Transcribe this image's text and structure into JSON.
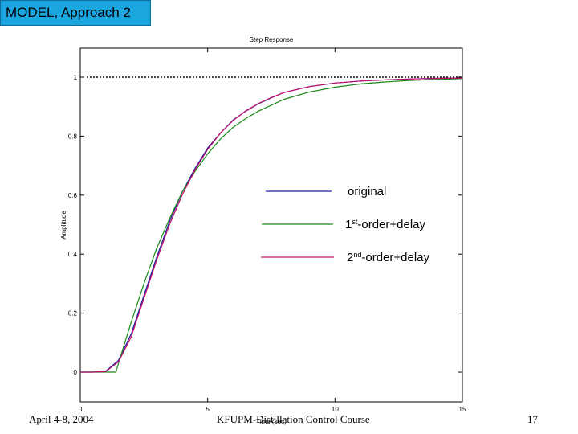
{
  "slide": {
    "title": "MODEL, Approach 2",
    "footer_date": "April 4-8, 2004",
    "footer_course": "KFUPM-Distillation Control Course",
    "page_number": "17"
  },
  "chart_data": {
    "type": "line",
    "title": "Step Response",
    "xlabel": "Time (sec)",
    "ylabel": "Amplitude",
    "xlim": [
      0,
      15
    ],
    "ylim": [
      0,
      1
    ],
    "xticks": [
      0,
      5,
      10,
      15
    ],
    "xtick_labels": [
      "0",
      "5",
      "10",
      "15"
    ],
    "yticks": [
      0,
      0.2,
      0.4,
      0.6,
      0.8,
      1.0
    ],
    "ytick_labels": [
      "0",
      "0.2",
      "0.4",
      "0.6",
      "0.8",
      "1"
    ],
    "grid": false,
    "reference_line": {
      "y": 1.0,
      "style": "dotted",
      "color": "#000000"
    },
    "series": [
      {
        "name": "original",
        "color": "#1a1aa0",
        "x": [
          0,
          0.5,
          1.0,
          1.5,
          2.0,
          2.5,
          3.0,
          3.5,
          4.0,
          4.5,
          5.0,
          5.5,
          6.0,
          6.5,
          7.0,
          7.5,
          8.0,
          9.0,
          10.0,
          11.0,
          12.0,
          13.0,
          14.0,
          15.0
        ],
        "y": [
          0,
          0,
          0.003,
          0.04,
          0.13,
          0.26,
          0.39,
          0.51,
          0.61,
          0.69,
          0.76,
          0.81,
          0.855,
          0.885,
          0.91,
          0.93,
          0.948,
          0.968,
          0.98,
          0.987,
          0.991,
          0.994,
          0.996,
          0.997
        ]
      },
      {
        "name": "1st-order+delay",
        "color": "#1a8a1a",
        "x": [
          0,
          0.5,
          1.0,
          1.4,
          1.5,
          2.0,
          2.5,
          3.0,
          3.5,
          4.0,
          4.5,
          5.0,
          5.5,
          6.0,
          6.5,
          7.0,
          7.5,
          8.0,
          9.0,
          10.0,
          11.0,
          12.0,
          13.0,
          14.0,
          15.0
        ],
        "y": [
          0,
          0,
          0,
          0,
          0.03,
          0.17,
          0.3,
          0.42,
          0.52,
          0.61,
          0.68,
          0.74,
          0.79,
          0.83,
          0.86,
          0.885,
          0.905,
          0.925,
          0.95,
          0.966,
          0.977,
          0.984,
          0.989,
          0.992,
          0.995
        ]
      },
      {
        "name": "2nd-order+delay",
        "color": "#c0106a",
        "x": [
          0,
          0.5,
          1.0,
          1.5,
          2.0,
          2.5,
          3.0,
          3.5,
          4.0,
          4.5,
          5.0,
          5.5,
          6.0,
          6.5,
          7.0,
          7.5,
          8.0,
          9.0,
          10.0,
          11.0,
          12.0,
          13.0,
          14.0,
          15.0
        ],
        "y": [
          0,
          0,
          0.002,
          0.035,
          0.12,
          0.25,
          0.38,
          0.5,
          0.6,
          0.685,
          0.755,
          0.81,
          0.853,
          0.886,
          0.911,
          0.931,
          0.948,
          0.968,
          0.98,
          0.987,
          0.991,
          0.994,
          0.996,
          0.997
        ]
      }
    ],
    "legend_labels": [
      {
        "base": "original",
        "sup": "",
        "rest": ""
      },
      {
        "base": "1",
        "sup": "st",
        "rest": "-order+delay"
      },
      {
        "base": "2",
        "sup": "nd",
        "rest": "-order+delay"
      }
    ],
    "legend_position": "center-right"
  }
}
